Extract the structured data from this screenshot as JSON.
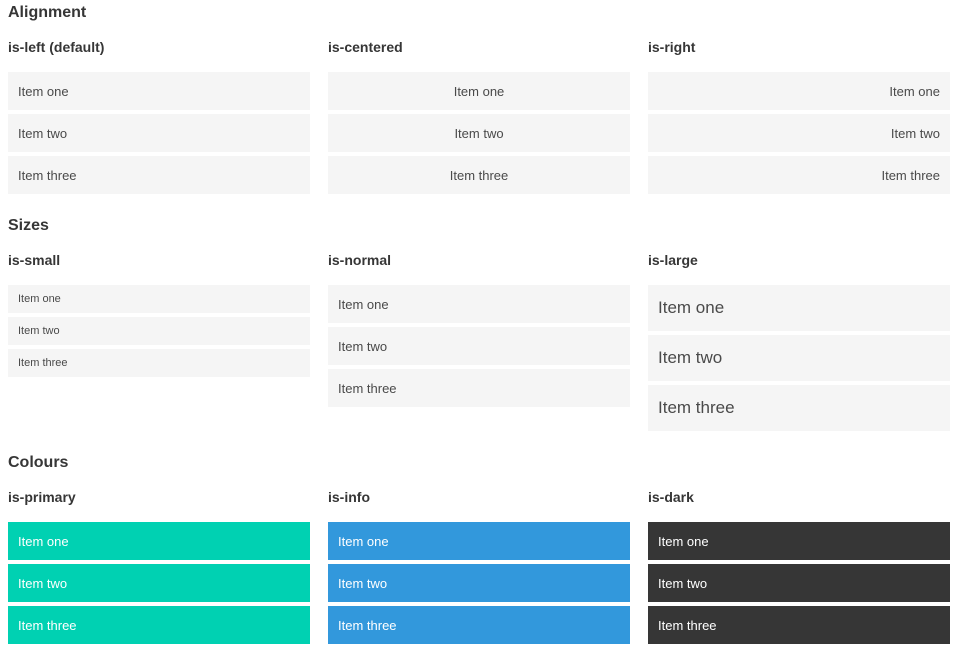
{
  "sections": [
    {
      "title": "Alignment",
      "variants": [
        {
          "label": "is-left (default)",
          "items": [
            "Item one",
            "Item two",
            "Item three"
          ]
        },
        {
          "label": "is-centered",
          "items": [
            "Item one",
            "Item two",
            "Item three"
          ]
        },
        {
          "label": "is-right",
          "items": [
            "Item one",
            "Item two",
            "Item three"
          ]
        }
      ]
    },
    {
      "title": "Sizes",
      "variants": [
        {
          "label": "is-small",
          "items": [
            "Item one",
            "Item two",
            "Item three"
          ]
        },
        {
          "label": "is-normal",
          "items": [
            "Item one",
            "Item two",
            "Item three"
          ]
        },
        {
          "label": "is-large",
          "items": [
            "Item one",
            "Item two",
            "Item three"
          ]
        }
      ]
    },
    {
      "title": "Colours",
      "variants": [
        {
          "label": "is-primary",
          "items": [
            "Item one",
            "Item two",
            "Item three"
          ]
        },
        {
          "label": "is-info",
          "items": [
            "Item one",
            "Item two",
            "Item three"
          ]
        },
        {
          "label": "is-dark",
          "items": [
            "Item one",
            "Item two",
            "Item three"
          ]
        }
      ]
    }
  ],
  "colors": {
    "primary": "#00d1b2",
    "info": "#3298dc",
    "dark": "#363636",
    "item_bg": "#f5f5f5",
    "item_text": "#4a4a4a",
    "heading": "#363636",
    "item_text_on_color": "#ffffff"
  }
}
